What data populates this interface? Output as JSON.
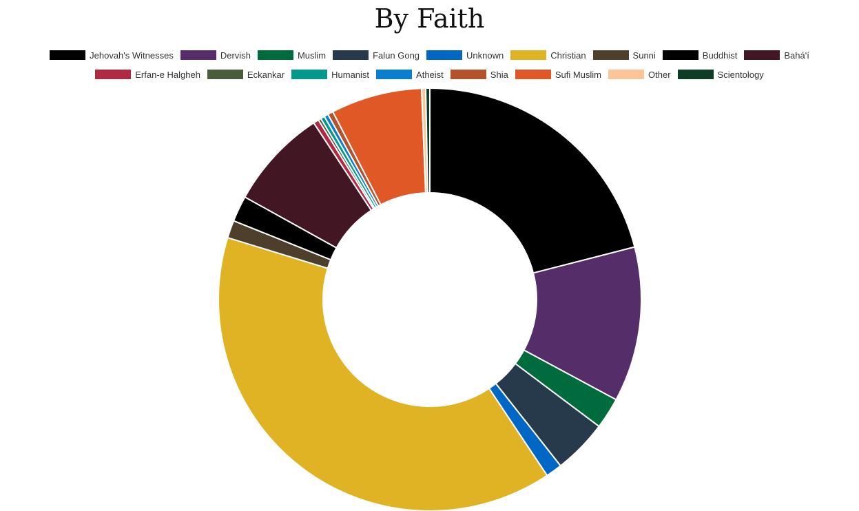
{
  "chart_data": {
    "type": "pie",
    "variant": "donut",
    "title": "By Faith",
    "legend_position": "top",
    "slices": [
      {
        "label": "Jehovah's Witnesses",
        "value": 20.2,
        "color": "#000000"
      },
      {
        "label": "Dervish",
        "value": 11.4,
        "color": "#542d69"
      },
      {
        "label": "Muslim",
        "value": 2.3,
        "color": "#006b3c"
      },
      {
        "label": "Falun Gong",
        "value": 4.0,
        "color": "#263a4c"
      },
      {
        "label": "Unknown",
        "value": 1.2,
        "color": "#0068c4"
      },
      {
        "label": "Christian",
        "value": 37.6,
        "color": "#e0b324"
      },
      {
        "label": "Sunni",
        "value": 1.3,
        "color": "#4e3e2c"
      },
      {
        "label": "Buddhist",
        "value": 1.9,
        "color": "#000000"
      },
      {
        "label": "Bahá'í",
        "value": 7.4,
        "color": "#431624"
      },
      {
        "label": "Erfan-e Halgheh",
        "value": 0.4,
        "color": "#b02a42"
      },
      {
        "label": "Eckankar",
        "value": 0.2,
        "color": "#495c3c"
      },
      {
        "label": "Humanist",
        "value": 0.3,
        "color": "#00998c"
      },
      {
        "label": "Atheist",
        "value": 0.3,
        "color": "#0a7fd0"
      },
      {
        "label": "Shia",
        "value": 0.4,
        "color": "#b5522e"
      },
      {
        "label": "Sufi Muslim",
        "value": 6.7,
        "color": "#e05825"
      },
      {
        "label": "Other",
        "value": 0.3,
        "color": "#fdc596"
      },
      {
        "label": "Scientology",
        "value": 0.3,
        "color": "#0d3d24"
      }
    ],
    "legend_rows": [
      9,
      8
    ]
  }
}
